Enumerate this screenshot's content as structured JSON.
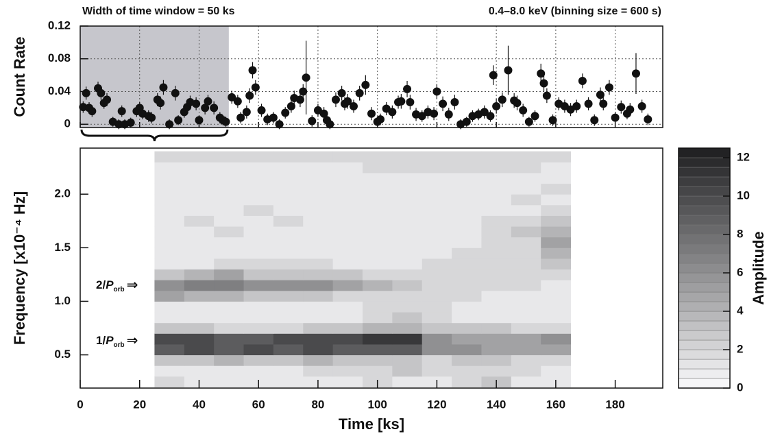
{
  "chart_data": [
    {
      "type": "scatter",
      "header_left": "Width of time window = 50 ks",
      "header_right": "0.4–8.0 keV (binning size = 600 s)",
      "ylabel": "Count Rate",
      "xlim": [
        0,
        196
      ],
      "ylim": [
        -0.004,
        0.12
      ],
      "xticks": [
        0,
        20,
        40,
        60,
        80,
        100,
        120,
        140,
        160,
        180
      ],
      "yticks": [
        0,
        0.04,
        0.08,
        0.12
      ],
      "grid": true,
      "highlight_window": [
        0,
        50
      ],
      "color": "#111111",
      "x": [
        1,
        2,
        3,
        4,
        6,
        7,
        8,
        9,
        11,
        13,
        14,
        15,
        17,
        19,
        20,
        21,
        23,
        24,
        26,
        27,
        28,
        30,
        32,
        33,
        35,
        36,
        37,
        39,
        40,
        42,
        43,
        45,
        47,
        48,
        49,
        51,
        53,
        54,
        56,
        57,
        58,
        59,
        61,
        63,
        65,
        67,
        69,
        71,
        72,
        74,
        75,
        76,
        78,
        80,
        82,
        83,
        84,
        86,
        88,
        89,
        90,
        92,
        94,
        96,
        98,
        100,
        101,
        103,
        105,
        107,
        108,
        110,
        111,
        113,
        115,
        117,
        119,
        120,
        122,
        124,
        126,
        128,
        130,
        132,
        134,
        136,
        138,
        139,
        140,
        142,
        144,
        146,
        147,
        149,
        151,
        153,
        155,
        156,
        157,
        159,
        161,
        163,
        165,
        167,
        169,
        171,
        173,
        175,
        176,
        178,
        180,
        182,
        184,
        185,
        187,
        189,
        191
      ],
      "values": [
        0.021,
        0.038,
        0.02,
        0.016,
        0.044,
        0.038,
        0.026,
        0.03,
        0.003,
        0.0,
        0.016,
        0.0,
        0.002,
        0.016,
        0.02,
        0.013,
        0.01,
        0.008,
        0.03,
        0.026,
        0.045,
        0.0,
        0.038,
        0.005,
        0.015,
        0.021,
        0.027,
        0.025,
        0.005,
        0.02,
        0.028,
        0.02,
        0.008,
        0.005,
        0.003,
        0.033,
        0.028,
        0.008,
        0.015,
        0.035,
        0.066,
        0.045,
        0.017,
        0.006,
        0.008,
        0.0,
        0.014,
        0.022,
        0.032,
        0.03,
        0.04,
        0.057,
        0.004,
        0.017,
        0.013,
        0.005,
        0.0,
        0.03,
        0.038,
        0.025,
        0.028,
        0.022,
        0.038,
        0.048,
        0.013,
        0.003,
        0.006,
        0.019,
        0.015,
        0.027,
        0.028,
        0.043,
        0.027,
        0.012,
        0.01,
        0.015,
        0.013,
        0.04,
        0.025,
        0.012,
        0.027,
        0.0,
        0.003,
        0.01,
        0.012,
        0.015,
        0.01,
        0.06,
        0.022,
        0.03,
        0.066,
        0.029,
        0.026,
        0.017,
        0.003,
        0.01,
        0.062,
        0.05,
        0.035,
        0.005,
        0.025,
        0.022,
        0.018,
        0.022,
        0.053,
        0.025,
        0.005,
        0.036,
        0.025,
        0.045,
        0.008,
        0.021,
        0.013,
        0.018,
        0.062,
        0.022,
        0.006
      ],
      "errors": [
        0.007,
        0.008,
        0.007,
        0.007,
        0.008,
        0.008,
        0.007,
        0.008,
        0.006,
        0.006,
        0.007,
        0.006,
        0.006,
        0.007,
        0.007,
        0.007,
        0.007,
        0.007,
        0.008,
        0.008,
        0.009,
        0.006,
        0.009,
        0.006,
        0.007,
        0.008,
        0.008,
        0.008,
        0.006,
        0.008,
        0.008,
        0.008,
        0.007,
        0.006,
        0.006,
        0.008,
        0.008,
        0.007,
        0.008,
        0.009,
        0.01,
        0.009,
        0.008,
        0.007,
        0.007,
        0.006,
        0.007,
        0.008,
        0.009,
        0.009,
        0.009,
        0.045,
        0.007,
        0.008,
        0.008,
        0.007,
        0.006,
        0.009,
        0.009,
        0.008,
        0.009,
        0.008,
        0.009,
        0.012,
        0.008,
        0.006,
        0.007,
        0.008,
        0.008,
        0.008,
        0.009,
        0.01,
        0.009,
        0.008,
        0.007,
        0.008,
        0.008,
        0.009,
        0.009,
        0.008,
        0.009,
        0.006,
        0.006,
        0.007,
        0.007,
        0.008,
        0.007,
        0.012,
        0.009,
        0.009,
        0.03,
        0.009,
        0.009,
        0.008,
        0.006,
        0.007,
        0.012,
        0.01,
        0.009,
        0.007,
        0.008,
        0.008,
        0.008,
        0.008,
        0.009,
        0.008,
        0.007,
        0.009,
        0.008,
        0.009,
        0.007,
        0.008,
        0.007,
        0.008,
        0.025,
        0.008,
        0.007
      ]
    },
    {
      "type": "heatmap",
      "xlabel": "Time [ks]",
      "ylabel": "Frequency [x10⁻⁴ Hz]",
      "zlabel": "Amplitude",
      "xlim": [
        0,
        196
      ],
      "ylim": [
        0.19,
        2.43
      ],
      "zlim": [
        0,
        12.5
      ],
      "xticks": [
        0,
        20,
        40,
        60,
        80,
        100,
        120,
        140,
        160,
        180
      ],
      "yticks": [
        0.5,
        {
          "value": 1,
          "label": "1.0"
        },
        1.5,
        {
          "value": 2,
          "label": "2.0"
        }
      ],
      "zticks": [
        0,
        2,
        4,
        6,
        8,
        10,
        12
      ],
      "annotations": [
        {
          "text": "2/",
          "italic": "P",
          "sub": "orb",
          "arrow": "⇒"
        },
        {
          "text": "1/",
          "italic": "P",
          "sub": "orb",
          "arrow": "⇒"
        }
      ],
      "x_edges": [
        25,
        35,
        45,
        55,
        65,
        75,
        85,
        95,
        105,
        115,
        125,
        135,
        145,
        155,
        165
      ],
      "y_edges": [
        0.2,
        0.3,
        0.4,
        0.5,
        0.6,
        0.7,
        0.8,
        0.9,
        1.0,
        1.1,
        1.2,
        1.3,
        1.4,
        1.5,
        1.6,
        1.7,
        1.8,
        1.9,
        2.0,
        2.1,
        2.2,
        2.3,
        2.4
      ],
      "z": [
        [
          2,
          1,
          1,
          1,
          1,
          1,
          1,
          2,
          1,
          1,
          2,
          3,
          1,
          1
        ],
        [
          1,
          1,
          1,
          1,
          1,
          2,
          2,
          2,
          3,
          2,
          2,
          2,
          2,
          1
        ],
        [
          3,
          3,
          4,
          3,
          3,
          4,
          3,
          3,
          3,
          2,
          3,
          3,
          2,
          2
        ],
        [
          9,
          10,
          9,
          10,
          9,
          10,
          9,
          9,
          9,
          6,
          6,
          5,
          5,
          5
        ],
        [
          10,
          10,
          9,
          9,
          10,
          10,
          10,
          11,
          11,
          6,
          5,
          5,
          5,
          6
        ],
        [
          3,
          3,
          2,
          2,
          2,
          3,
          3,
          4,
          4,
          3,
          3,
          3,
          2,
          2
        ],
        [
          1,
          1,
          1,
          1,
          1,
          1,
          1,
          2,
          3,
          2,
          1,
          1,
          1,
          1
        ],
        [
          1,
          1,
          1,
          1,
          1,
          1,
          1,
          2,
          2,
          2,
          1,
          1,
          1,
          1
        ],
        [
          5,
          4,
          4,
          3,
          3,
          3,
          2,
          2,
          2,
          2,
          2,
          1,
          1,
          1
        ],
        [
          6,
          7,
          7,
          6,
          6,
          6,
          5,
          4,
          3,
          2,
          2,
          2,
          2,
          1
        ],
        [
          3,
          4,
          5,
          3,
          3,
          3,
          3,
          2,
          2,
          2,
          2,
          2,
          2,
          2
        ],
        [
          1,
          1,
          2,
          2,
          2,
          2,
          1,
          1,
          1,
          2,
          2,
          2,
          2,
          3
        ],
        [
          1,
          1,
          1,
          1,
          1,
          1,
          1,
          1,
          1,
          1,
          2,
          2,
          2,
          4
        ],
        [
          1,
          1,
          1,
          1,
          1,
          1,
          1,
          1,
          1,
          1,
          1,
          2,
          2,
          5
        ],
        [
          1,
          1,
          2,
          1,
          1,
          1,
          1,
          1,
          1,
          1,
          1,
          2,
          3,
          4
        ],
        [
          1,
          2,
          1,
          1,
          2,
          1,
          1,
          1,
          1,
          1,
          1,
          2,
          2,
          3
        ],
        [
          1,
          1,
          1,
          2,
          1,
          1,
          1,
          1,
          1,
          1,
          1,
          1,
          1,
          2
        ],
        [
          1,
          1,
          1,
          1,
          1,
          1,
          1,
          1,
          1,
          1,
          1,
          1,
          2,
          1
        ],
        [
          1,
          1,
          1,
          1,
          1,
          1,
          1,
          1,
          1,
          1,
          1,
          1,
          1,
          2
        ],
        [
          1,
          1,
          1,
          1,
          1,
          1,
          1,
          1,
          1,
          1,
          1,
          1,
          1,
          1
        ],
        [
          1,
          1,
          1,
          1,
          1,
          1,
          1,
          2,
          2,
          2,
          2,
          2,
          2,
          1
        ],
        [
          2,
          2,
          2,
          2,
          2,
          2,
          2,
          2,
          2,
          2,
          2,
          2,
          2,
          2
        ]
      ]
    }
  ]
}
